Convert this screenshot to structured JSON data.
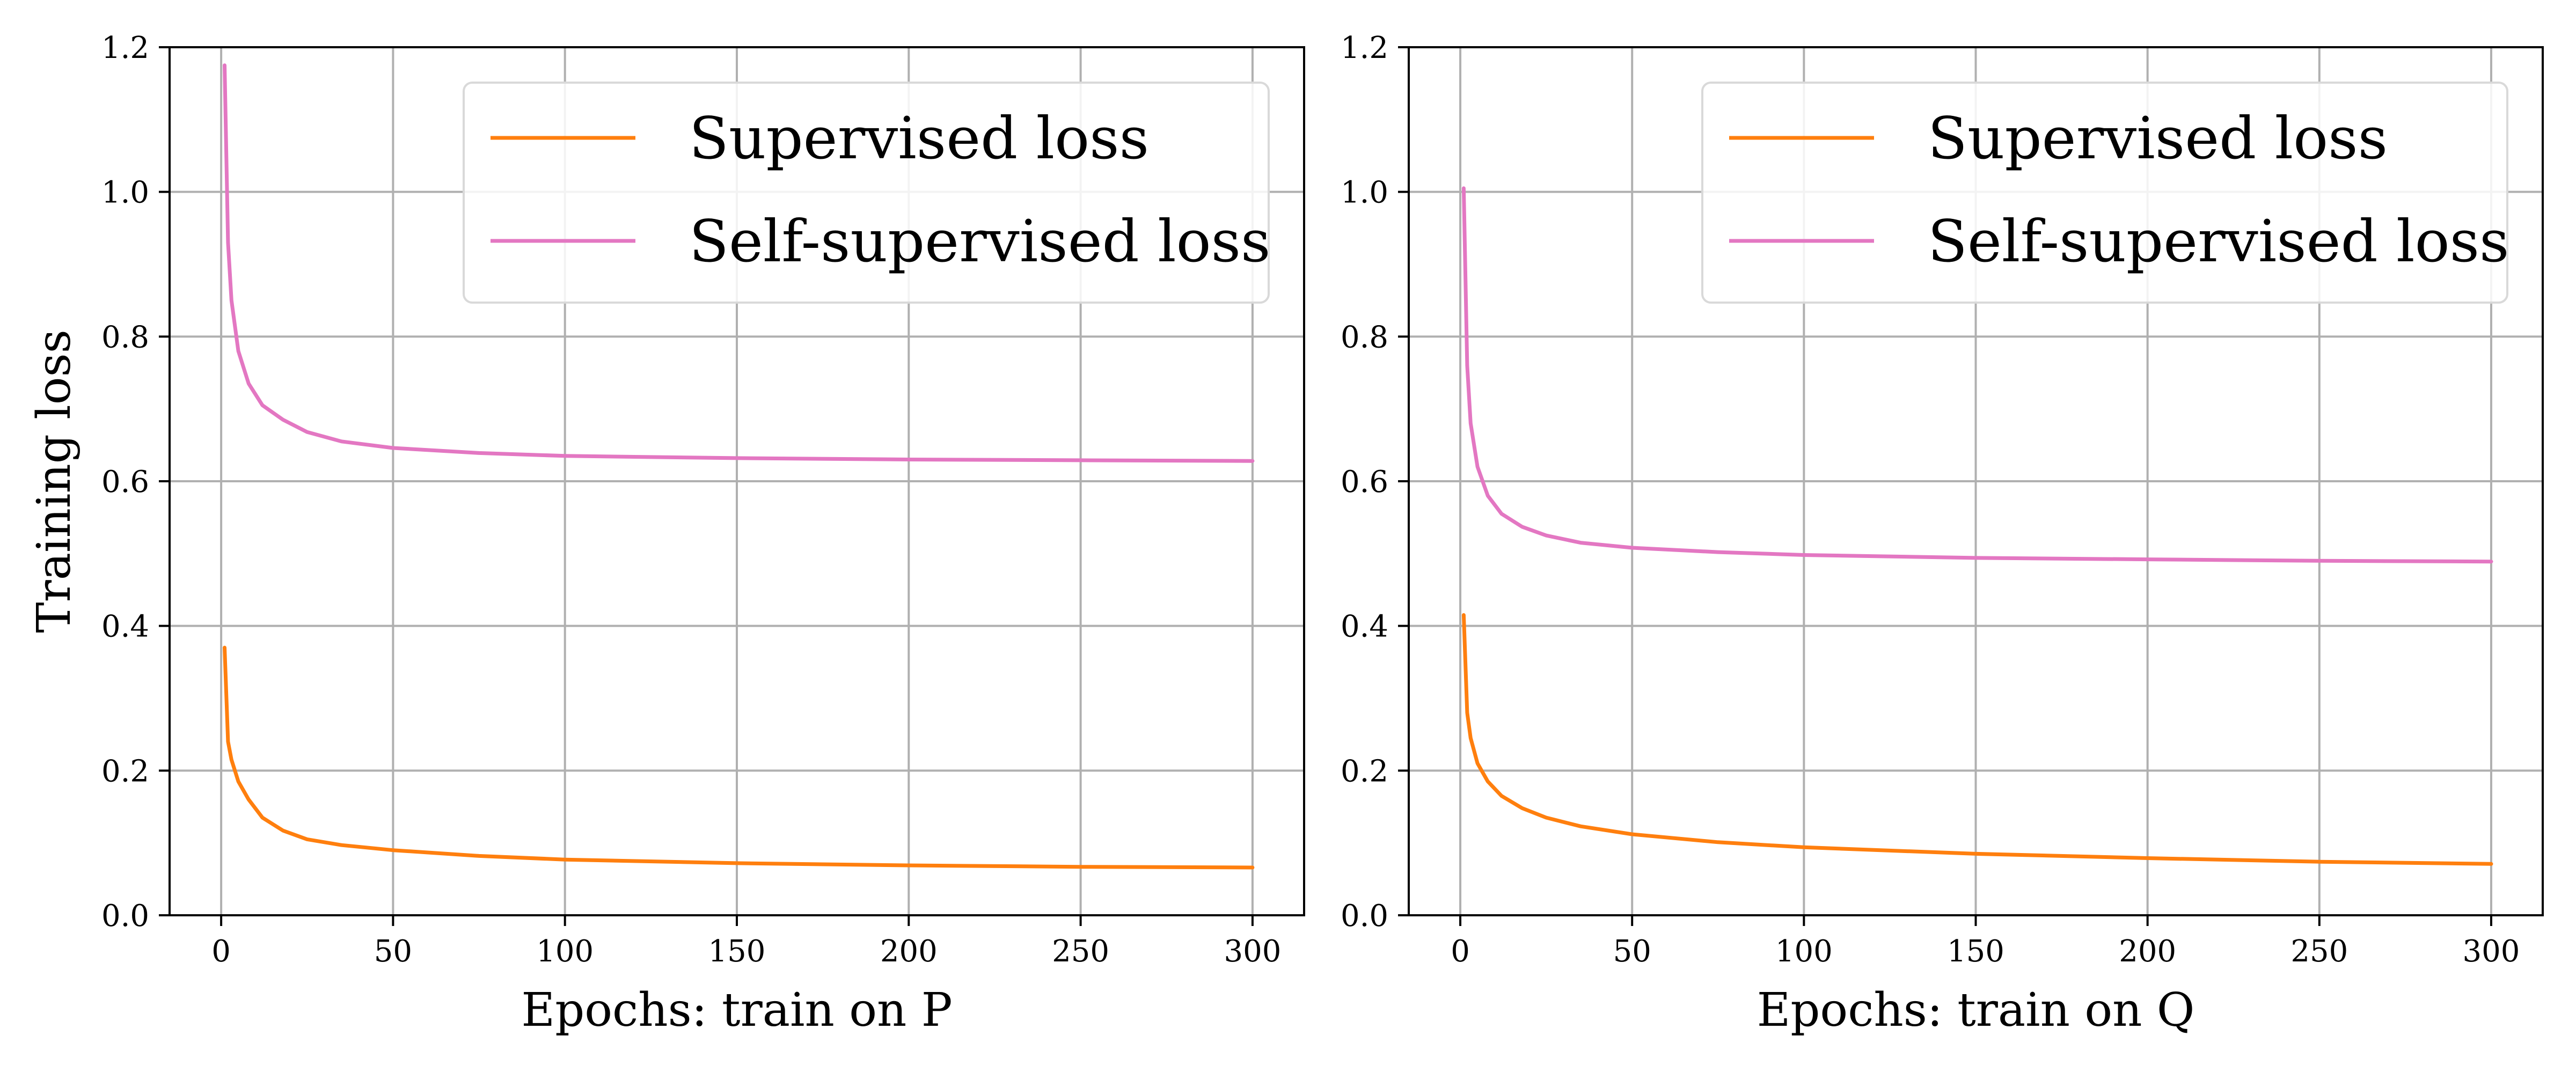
{
  "chart_data": [
    {
      "type": "line",
      "xlabel": "Epochs: train on P",
      "ylabel": "Training loss",
      "xlim": [
        -15,
        315
      ],
      "ylim": [
        0.0,
        1.2
      ],
      "xticks": [
        0,
        50,
        100,
        150,
        200,
        250,
        300
      ],
      "xtick_labels": [
        "0",
        "50",
        "100",
        "150",
        "200",
        "250",
        "300"
      ],
      "yticks": [
        0.0,
        0.2,
        0.4,
        0.6,
        0.8,
        1.0,
        1.2
      ],
      "ytick_labels": [
        "0.0",
        "0.2",
        "0.4",
        "0.6",
        "0.8",
        "1.0",
        "1.2"
      ],
      "grid": true,
      "legend_position": "top-right",
      "series": [
        {
          "name": "Supervised loss",
          "color": "#ff7f0e",
          "x": [
            1,
            2,
            3,
            5,
            8,
            12,
            18,
            25,
            35,
            50,
            75,
            100,
            150,
            200,
            250,
            300
          ],
          "y": [
            0.37,
            0.24,
            0.215,
            0.185,
            0.16,
            0.135,
            0.117,
            0.105,
            0.097,
            0.09,
            0.082,
            0.077,
            0.072,
            0.069,
            0.067,
            0.066
          ]
        },
        {
          "name": "Self-supervised loss",
          "color": "#e377c2",
          "x": [
            1,
            2,
            3,
            5,
            8,
            12,
            18,
            25,
            35,
            50,
            75,
            100,
            150,
            200,
            250,
            300
          ],
          "y": [
            1.175,
            0.93,
            0.85,
            0.78,
            0.735,
            0.705,
            0.685,
            0.668,
            0.655,
            0.646,
            0.639,
            0.635,
            0.632,
            0.63,
            0.629,
            0.628
          ]
        }
      ]
    },
    {
      "type": "line",
      "xlabel": "Epochs: train on Q",
      "ylabel": "",
      "xlim": [
        -15,
        315
      ],
      "ylim": [
        0.0,
        1.2
      ],
      "xticks": [
        0,
        50,
        100,
        150,
        200,
        250,
        300
      ],
      "xtick_labels": [
        "0",
        "50",
        "100",
        "150",
        "200",
        "250",
        "300"
      ],
      "yticks": [
        0.0,
        0.2,
        0.4,
        0.6,
        0.8,
        1.0,
        1.2
      ],
      "ytick_labels": [
        "0.0",
        "0.2",
        "0.4",
        "0.6",
        "0.8",
        "1.0",
        "1.2"
      ],
      "grid": true,
      "legend_position": "top-right",
      "series": [
        {
          "name": "Supervised loss",
          "color": "#ff7f0e",
          "x": [
            1,
            2,
            3,
            5,
            8,
            12,
            18,
            25,
            35,
            50,
            75,
            100,
            150,
            200,
            250,
            300
          ],
          "y": [
            0.415,
            0.28,
            0.245,
            0.21,
            0.185,
            0.165,
            0.148,
            0.135,
            0.123,
            0.112,
            0.101,
            0.094,
            0.085,
            0.079,
            0.074,
            0.071
          ]
        },
        {
          "name": "Self-supervised loss",
          "color": "#e377c2",
          "x": [
            1,
            2,
            3,
            5,
            8,
            12,
            18,
            25,
            35,
            50,
            75,
            100,
            150,
            200,
            250,
            300
          ],
          "y": [
            1.005,
            0.76,
            0.68,
            0.62,
            0.58,
            0.555,
            0.537,
            0.525,
            0.515,
            0.508,
            0.502,
            0.498,
            0.494,
            0.492,
            0.49,
            0.489
          ]
        }
      ]
    }
  ]
}
